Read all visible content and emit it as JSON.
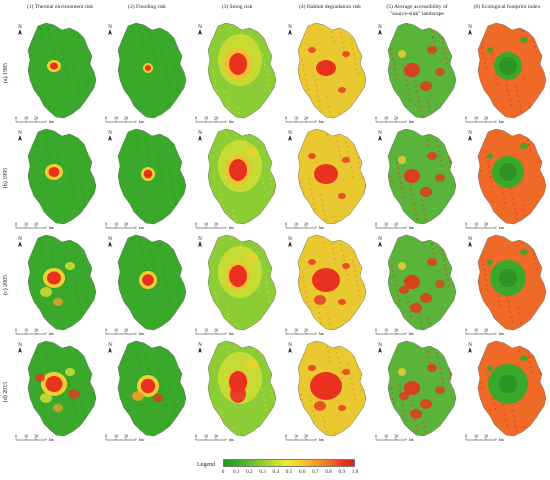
{
  "columns": [
    {
      "label_line1": "(1) Thermal environment risk",
      "label_line2": ""
    },
    {
      "label_line1": "(2) Flooding risk",
      "label_line2": ""
    },
    {
      "label_line1": "(3) Smog risk",
      "label_line2": ""
    },
    {
      "label_line1": "(4) Habitat degradation risk",
      "label_line2": ""
    },
    {
      "label_line1": "(5) Average accessibility of",
      "label_line2": "\"source-sink\" landscape"
    },
    {
      "label_line1": "(6) Ecological footprint index",
      "label_line2": ""
    }
  ],
  "rows": [
    {
      "label": "(a) 1985"
    },
    {
      "label": "(b) 1995"
    },
    {
      "label": "(c) 2005"
    },
    {
      "label": "(d) 2015"
    }
  ],
  "map_furniture": {
    "north_label": "N",
    "scale_ticks": [
      "0",
      "10",
      "20"
    ],
    "scale_unit": "km"
  },
  "legend": {
    "title": "Legend",
    "ticks": [
      "0",
      "0.1",
      "0.2",
      "0.3",
      "0.4",
      "0.5",
      "0.6",
      "0.7",
      "0.8",
      "0.9",
      "1.0"
    ],
    "colors": [
      "#1a9a2a",
      "#7cc52c",
      "#ecec32",
      "#f6a02a",
      "#d8201c"
    ]
  }
}
